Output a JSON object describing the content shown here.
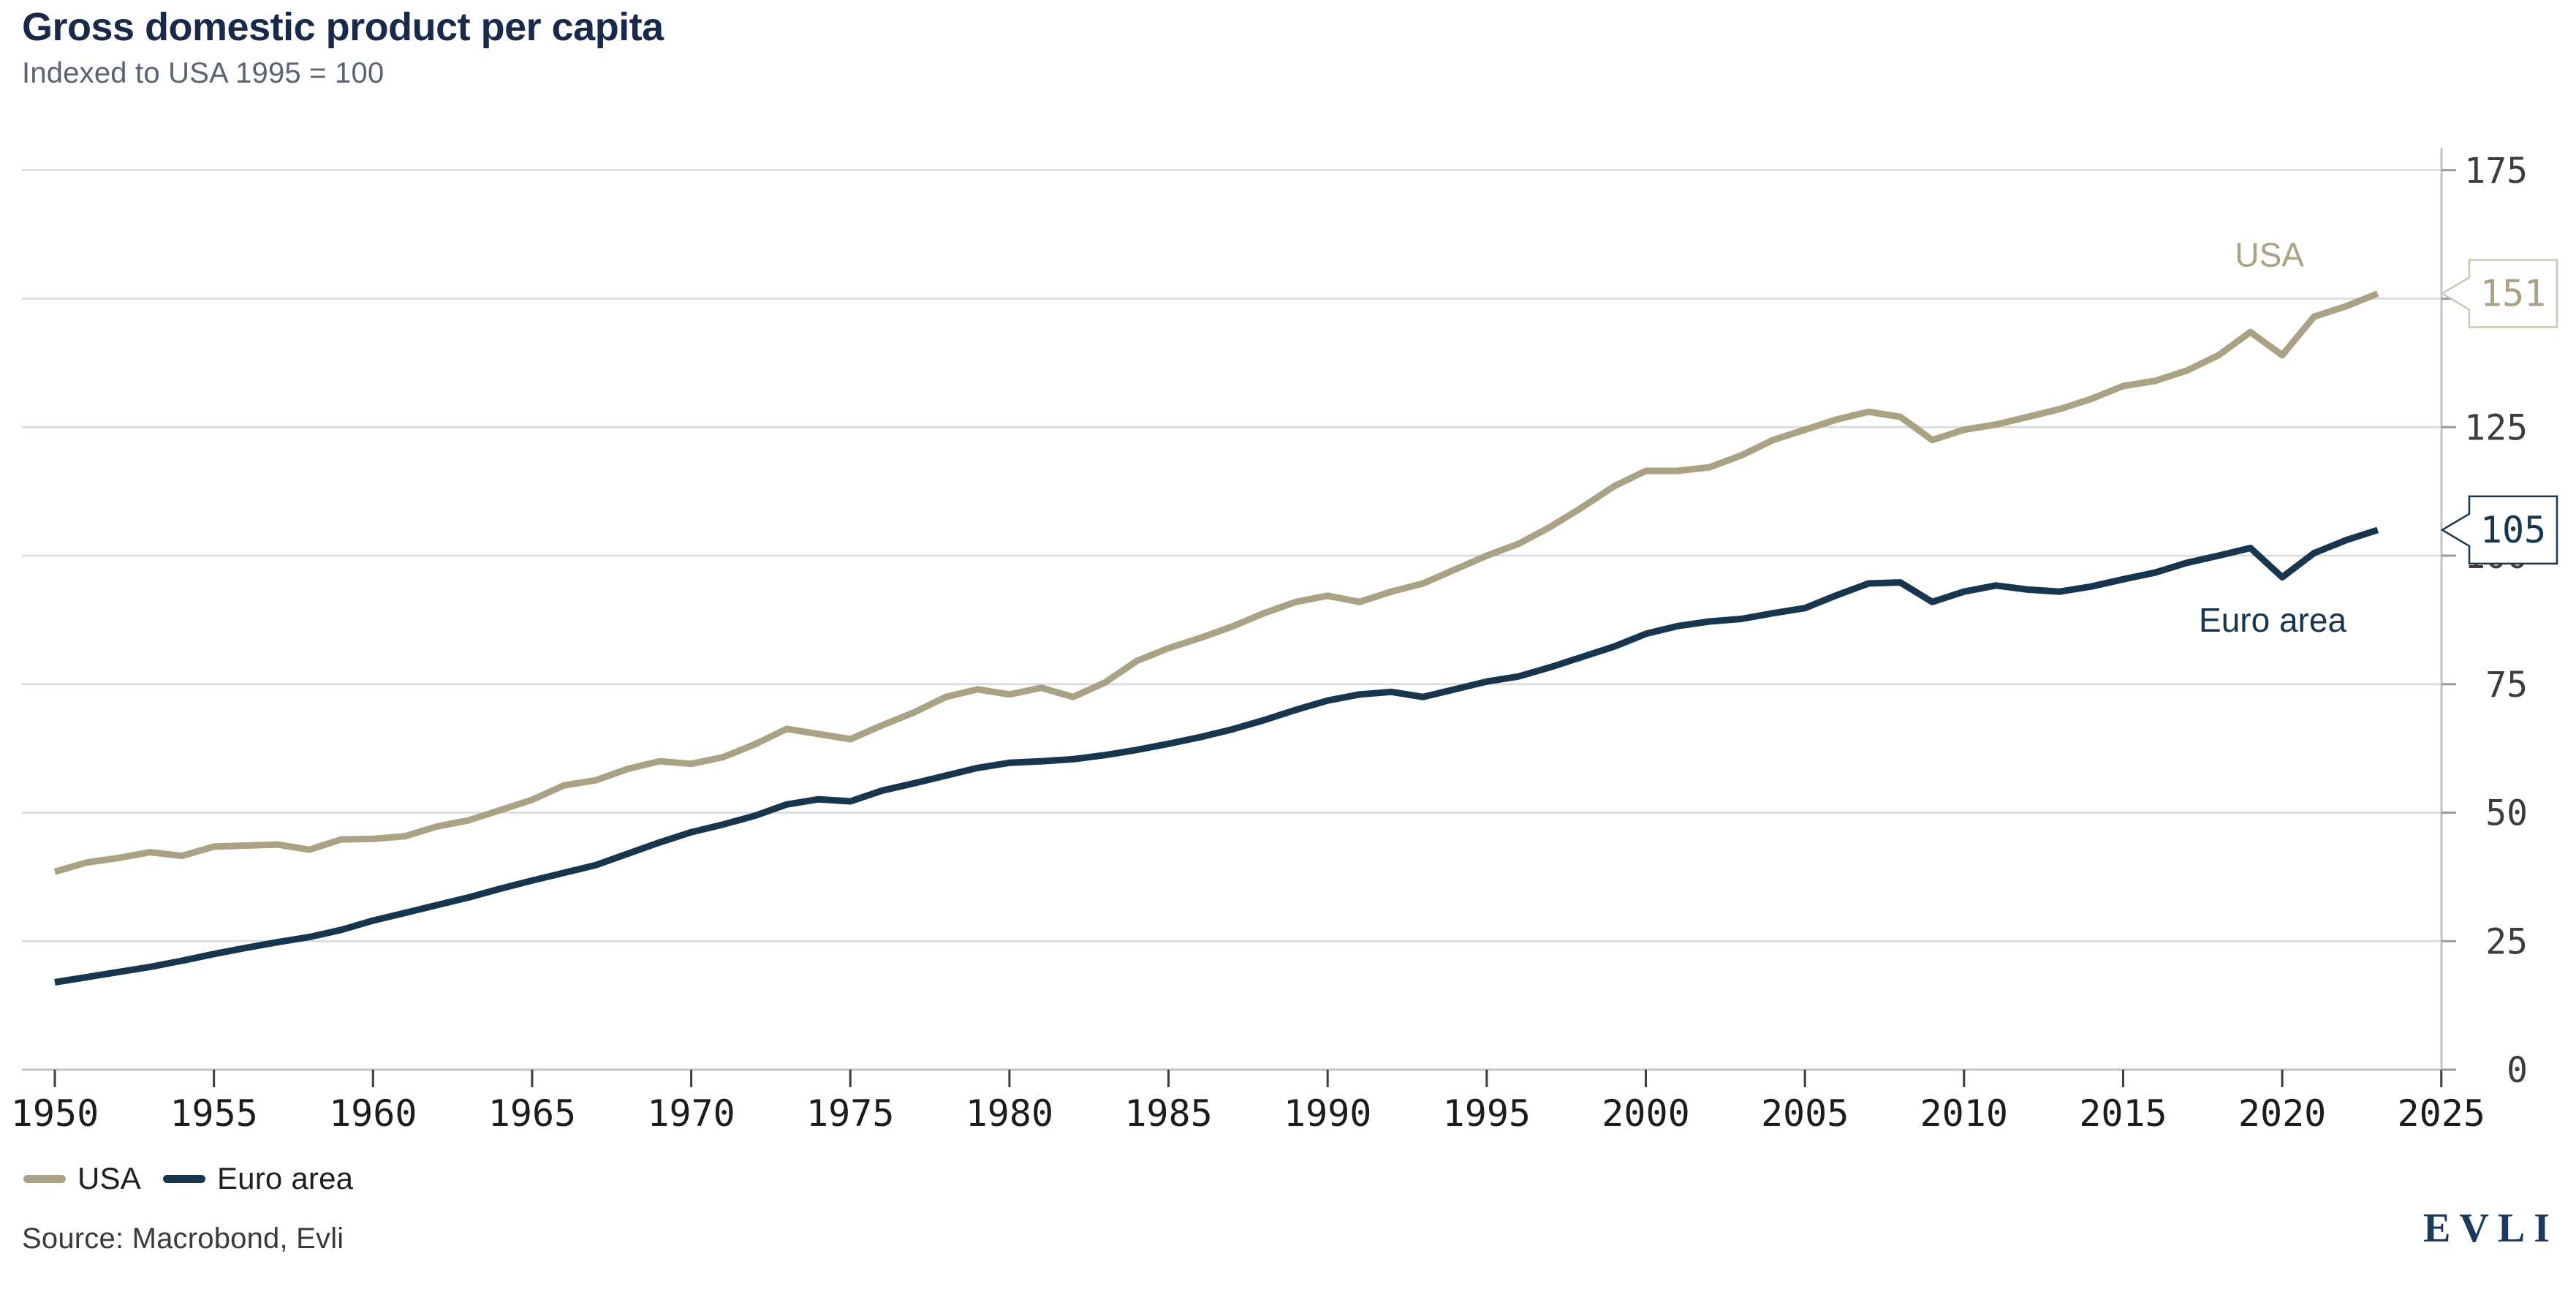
{
  "header": {
    "title": "Gross domestic product per capita",
    "subtitle": "Indexed to USA 1995 = 100"
  },
  "chart_data": {
    "type": "line",
    "title": "Gross domestic product per capita",
    "subtitle": "Indexed to USA 1995 = 100",
    "grid": "horizontal-only",
    "legend_position": "bottom-left",
    "ylim": [
      0,
      175
    ],
    "yticks": [
      0,
      25,
      50,
      75,
      100,
      125,
      150,
      175
    ],
    "xticks": [
      1950,
      1955,
      1960,
      1965,
      1970,
      1975,
      1980,
      1985,
      1990,
      1995,
      2000,
      2005,
      2010,
      2015,
      2020,
      2025
    ],
    "xlim": [
      1950,
      2025
    ],
    "x": [
      1950,
      1951,
      1952,
      1953,
      1954,
      1955,
      1956,
      1957,
      1958,
      1959,
      1960,
      1961,
      1962,
      1963,
      1964,
      1965,
      1966,
      1967,
      1968,
      1969,
      1970,
      1971,
      1972,
      1973,
      1974,
      1975,
      1976,
      1977,
      1978,
      1979,
      1980,
      1981,
      1982,
      1983,
      1984,
      1985,
      1986,
      1987,
      1988,
      1989,
      1990,
      1991,
      1992,
      1993,
      1994,
      1995,
      1996,
      1997,
      1998,
      1999,
      2000,
      2001,
      2002,
      2003,
      2004,
      2005,
      2006,
      2007,
      2008,
      2009,
      2010,
      2011,
      2012,
      2013,
      2014,
      2015,
      2016,
      2017,
      2018,
      2019,
      2020,
      2021,
      2022,
      2023
    ],
    "series": [
      {
        "name": "USA",
        "color": "#aba283",
        "values": [
          38.5,
          40.3,
          41.2,
          42.3,
          41.6,
          43.4,
          43.6,
          43.8,
          42.8,
          44.8,
          44.9,
          45.4,
          47.3,
          48.5,
          50.5,
          52.5,
          55.3,
          56.3,
          58.5,
          60.0,
          59.5,
          60.8,
          63.3,
          66.3,
          65.3,
          64.3,
          67.0,
          69.5,
          72.5,
          74.0,
          73.0,
          74.3,
          72.5,
          75.3,
          79.5,
          82.0,
          84.0,
          86.2,
          88.8,
          91.0,
          92.2,
          91.0,
          93.0,
          94.6,
          97.3,
          100.0,
          102.3,
          105.6,
          109.4,
          113.5,
          116.5,
          116.5,
          117.2,
          119.5,
          122.5,
          124.5,
          126.5,
          128.0,
          127.0,
          122.5,
          124.5,
          125.5,
          127.0,
          128.5,
          130.5,
          133.0,
          134.0,
          136.0,
          139.0,
          143.5,
          139.0,
          146.5,
          148.5,
          151.0
        ]
      },
      {
        "name": "Euro area",
        "color": "#16354f",
        "values": [
          17.0,
          18.0,
          19.0,
          20.0,
          21.2,
          22.5,
          23.7,
          24.8,
          25.8,
          27.2,
          29.0,
          30.5,
          32.0,
          33.5,
          35.2,
          36.8,
          38.3,
          39.8,
          42.0,
          44.2,
          46.2,
          47.7,
          49.4,
          51.6,
          52.6,
          52.2,
          54.3,
          55.7,
          57.2,
          58.7,
          59.7,
          60.0,
          60.4,
          61.2,
          62.2,
          63.4,
          64.7,
          66.2,
          68.0,
          70.0,
          71.8,
          73.0,
          73.5,
          72.5,
          74.0,
          75.5,
          76.5,
          78.3,
          80.3,
          82.3,
          84.8,
          86.3,
          87.2,
          87.7,
          88.8,
          89.8,
          92.3,
          94.6,
          94.8,
          91.0,
          93.0,
          94.2,
          93.4,
          93.0,
          94.0,
          95.4,
          96.7,
          98.6,
          100.0,
          101.5,
          95.8,
          100.5,
          103.0,
          105.0
        ]
      }
    ],
    "series_annotations": [
      {
        "text": "USA",
        "year": 2019.6,
        "value": 158.5,
        "color": "#aba283"
      },
      {
        "text": "Euro area",
        "year": 2019.7,
        "value": 87.5,
        "color": "#16354f"
      }
    ],
    "end_labels": [
      {
        "series": "USA",
        "text": "151",
        "value": 151,
        "text_color": "#aba283",
        "border_color": "#cdc6b0"
      },
      {
        "series": "Euro area",
        "text": "105",
        "value": 105,
        "text_color": "#16354f",
        "border_color": "#16354f"
      }
    ],
    "colors": {
      "grid": "#d9d9d9",
      "axis_line": "#c2c2c2",
      "x_tick": "#3c3c3c",
      "y_tick": "#9a9a9a",
      "x_label": "#1c1c1c",
      "y_label": "#3d3d3d"
    }
  },
  "legend": {
    "items": [
      {
        "label": "USA",
        "color": "#aba283"
      },
      {
        "label": "Euro area",
        "color": "#16354f"
      }
    ]
  },
  "footer": {
    "source": "Source: Macrobond, Evli",
    "logo": "EVLI"
  }
}
